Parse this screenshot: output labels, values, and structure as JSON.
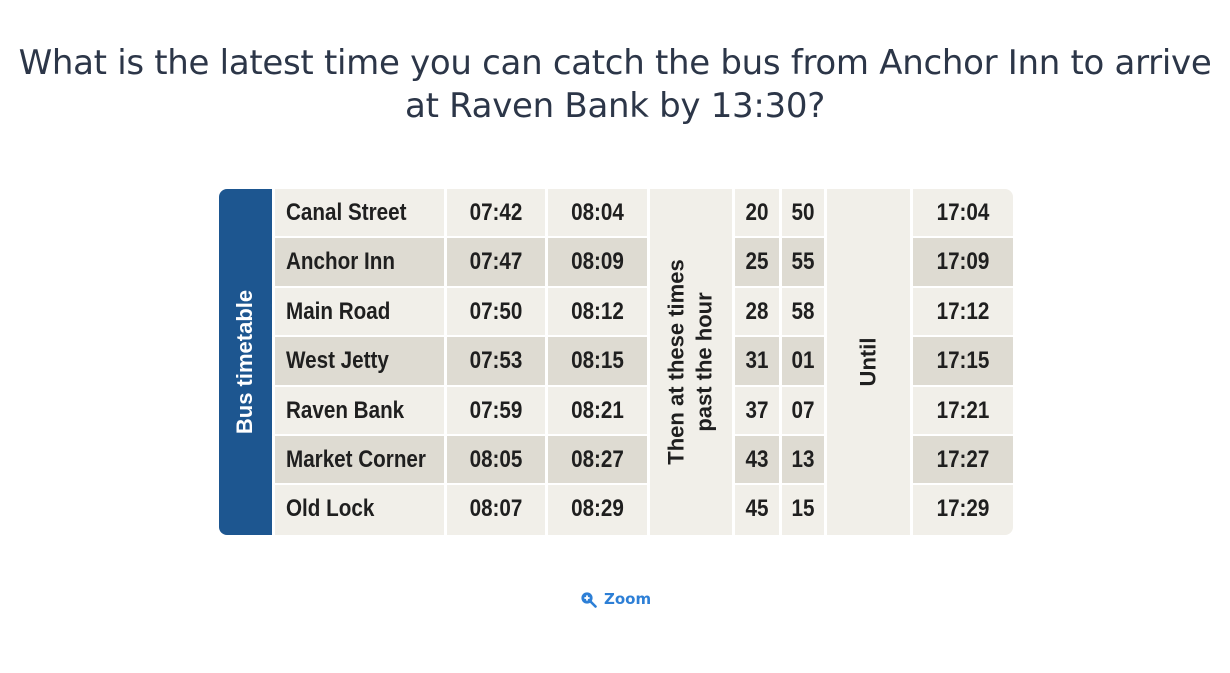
{
  "question": {
    "line1": "What is the latest time you can catch the bus from Anchor Inn to arrive",
    "line2": "at Raven Bank by 13:30?"
  },
  "timetable": {
    "side_label": "Bus timetable",
    "then_label_line1": "Then at these times",
    "then_label_line2": "past the hour",
    "until_label": "Until",
    "rows": [
      {
        "stop": "Canal Street",
        "t1": "07:42",
        "t2": "08:04",
        "m1": "20",
        "m2": "50",
        "last": "17:04"
      },
      {
        "stop": "Anchor Inn",
        "t1": "07:47",
        "t2": "08:09",
        "m1": "25",
        "m2": "55",
        "last": "17:09"
      },
      {
        "stop": "Main Road",
        "t1": "07:50",
        "t2": "08:12",
        "m1": "28",
        "m2": "58",
        "last": "17:12"
      },
      {
        "stop": "West Jetty",
        "t1": "07:53",
        "t2": "08:15",
        "m1": "31",
        "m2": "01",
        "last": "17:15"
      },
      {
        "stop": "Raven Bank",
        "t1": "07:59",
        "t2": "08:21",
        "m1": "37",
        "m2": "07",
        "last": "17:21"
      },
      {
        "stop": "Market Corner",
        "t1": "08:05",
        "t2": "08:27",
        "m1": "43",
        "m2": "13",
        "last": "17:27"
      },
      {
        "stop": "Old Lock",
        "t1": "08:07",
        "t2": "08:29",
        "m1": "45",
        "m2": "15",
        "last": "17:29"
      }
    ]
  },
  "zoom": {
    "label": "Zoom",
    "icon": "zoom-in-icon"
  },
  "colors": {
    "side_bar": "#1d5690",
    "row_light": "#f1efe9",
    "row_dark": "#dedbd2",
    "link": "#2d7fd6",
    "question_text": "#2c3648"
  }
}
